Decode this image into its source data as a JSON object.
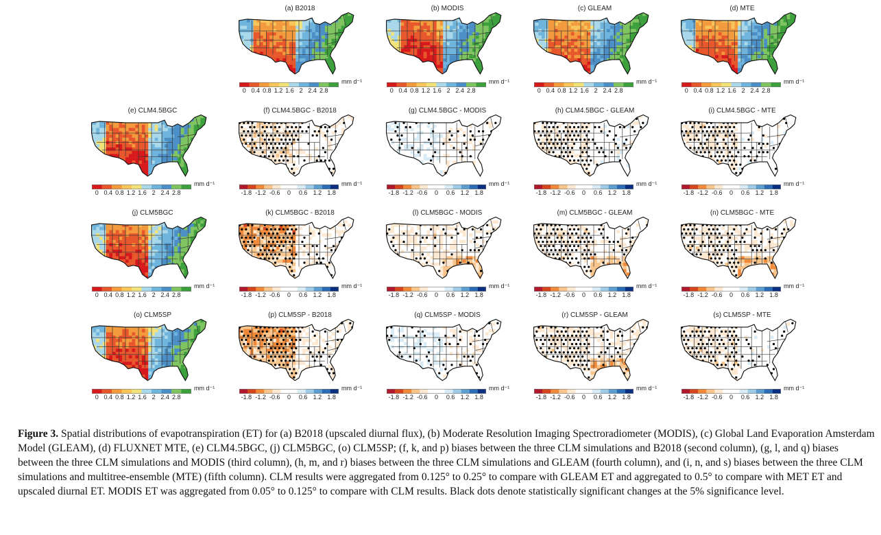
{
  "units": "mm d⁻¹",
  "scales": {
    "et": {
      "ticks": [
        "0",
        "0.4",
        "0.8",
        "1.2",
        "1.6",
        "2",
        "2.4",
        "2.8"
      ],
      "colors": [
        "#d7191c",
        "#e8572b",
        "#f39a3d",
        "#f7c55a",
        "#f2e27a",
        "#a9d8ea",
        "#6fb4dc",
        "#4b8fc6",
        "#7ec460",
        "#3ca03c"
      ]
    },
    "bias": {
      "ticks": [
        "-1.8",
        "-1.2",
        "-0.6",
        "0",
        "0.6",
        "1.2",
        "1.8"
      ],
      "colors": [
        "#b2182b",
        "#d6461e",
        "#f08a3a",
        "#f7c58c",
        "#fde8d2",
        "#ffffff",
        "#ffffff",
        "#d9ecf6",
        "#9fcbe6",
        "#5c9ed0",
        "#2b6cb4",
        "#0b2f80"
      ]
    }
  },
  "panels": [
    {
      "id": "a",
      "title": "(a) B2018",
      "kind": "et",
      "row": 0,
      "col": 1
    },
    {
      "id": "b",
      "title": "(b) MODIS",
      "kind": "et",
      "row": 0,
      "col": 2
    },
    {
      "id": "c",
      "title": "(c) GLEAM",
      "kind": "et",
      "row": 0,
      "col": 3
    },
    {
      "id": "d",
      "title": "(d) MTE",
      "kind": "et",
      "row": 0,
      "col": 4
    },
    {
      "id": "e",
      "title": "(e) CLM4.5BGC",
      "kind": "et",
      "row": 1,
      "col": 0
    },
    {
      "id": "f",
      "title": "(f) CLM4.5BGC - B2018",
      "kind": "bias",
      "row": 1,
      "col": 1
    },
    {
      "id": "g",
      "title": "(g) CLM4.5BGC - MODIS",
      "kind": "bias",
      "row": 1,
      "col": 2
    },
    {
      "id": "h",
      "title": "(h) CLM4.5BGC - GLEAM",
      "kind": "bias",
      "row": 1,
      "col": 3
    },
    {
      "id": "i",
      "title": "(i) CLM4.5BGC - MTE",
      "kind": "bias",
      "row": 1,
      "col": 4
    },
    {
      "id": "j",
      "title": "(j) CLM5BGC",
      "kind": "et",
      "row": 2,
      "col": 0
    },
    {
      "id": "k",
      "title": "(k) CLM5BGC - B2018",
      "kind": "bias",
      "row": 2,
      "col": 1
    },
    {
      "id": "l",
      "title": "(l) CLM5BGC - MODIS",
      "kind": "bias",
      "row": 2,
      "col": 2
    },
    {
      "id": "m",
      "title": "(m) CLM5BGC - GLEAM",
      "kind": "bias",
      "row": 2,
      "col": 3
    },
    {
      "id": "n",
      "title": "(n) CLM5BGC - MTE",
      "kind": "bias",
      "row": 2,
      "col": 4
    },
    {
      "id": "o",
      "title": "(o) CLM5SP",
      "kind": "et",
      "row": 3,
      "col": 0
    },
    {
      "id": "p",
      "title": "(p) CLM5SP - B2018",
      "kind": "bias",
      "row": 3,
      "col": 1
    },
    {
      "id": "q",
      "title": "(q) CLM5SP - MODIS",
      "kind": "bias",
      "row": 3,
      "col": 2
    },
    {
      "id": "r",
      "title": "(r) CLM5SP - GLEAM",
      "kind": "bias",
      "row": 3,
      "col": 3
    },
    {
      "id": "s",
      "title": "(s) CLM5SP - MTE",
      "kind": "bias",
      "row": 3,
      "col": 4
    }
  ],
  "caption": {
    "label": "Figure 3.",
    "text": "Spatial distributions of evapotranspiration (ET) for (a) B2018 (upscaled diurnal flux), (b) Moderate Resolution Imaging Spectroradiometer (MODIS), (c) Global Land Evaporation Amsterdam Model (GLEAM), (d) FLUXNET MTE, (e) CLM4.5BGC, (j) CLM5BGC, (o) CLM5SP; (f, k, and p) biases between the three CLM simulations and B2018 (second column), (g, l, and q) biases between the three CLM simulations and MODIS (third column), (h, m, and r) biases between the three CLM simulations and GLEAM (fourth column), and (i, n, and s) biases between the three CLM simulations and multitree-ensemble (MTE) (fifth column). CLM results were aggregated from 0.125° to 0.25° to compare with GLEAM ET and aggregated to 0.5° to compare with MET ET and upscaled diurnal ET. MODIS ET was aggregated from 0.05° to 0.125° to compare with CLM results. Black dots denote statistically significant changes at the 5% significance level."
  }
}
